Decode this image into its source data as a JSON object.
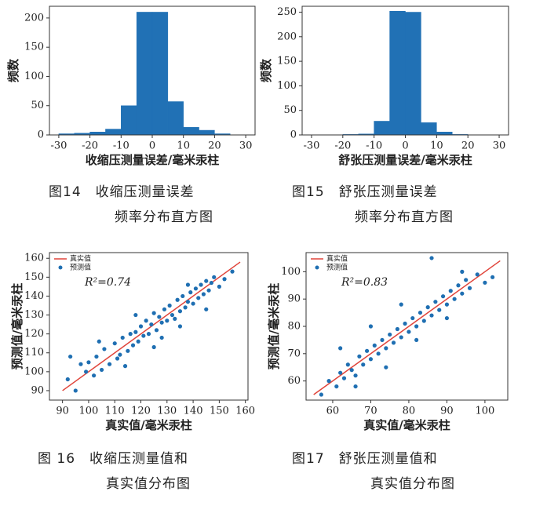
{
  "chart_data": [
    {
      "type": "histogram",
      "xlabel": "收缩压测量误差/毫米汞柱",
      "ylabel": "频数",
      "color": "#2171b5",
      "bins": [
        -30,
        -25,
        -20,
        -15,
        -10,
        -5,
        0,
        5,
        10,
        15,
        20,
        25
      ],
      "values": [
        2,
        3,
        5,
        10,
        50,
        210,
        210,
        57,
        13,
        8,
        2
      ],
      "xlim": [
        -33,
        33
      ],
      "xticks": [
        -30,
        -20,
        -10,
        0,
        10,
        20,
        30
      ],
      "ylim": [
        0,
        220
      ],
      "yticks": [
        0,
        50,
        100,
        150,
        200
      ]
    },
    {
      "type": "histogram",
      "xlabel": "舒张压测量误差/毫米汞柱",
      "ylabel": "频数",
      "color": "#2171b5",
      "bins": [
        -20,
        -15,
        -10,
        -5,
        0,
        5,
        10,
        15,
        20
      ],
      "values": [
        1,
        2,
        28,
        252,
        250,
        25,
        6,
        1
      ],
      "xlim": [
        -33,
        33
      ],
      "xticks": [
        -30,
        -20,
        -10,
        0,
        10,
        20,
        30
      ],
      "ylim": [
        0,
        262
      ],
      "yticks": [
        0,
        50,
        100,
        150,
        200,
        250
      ]
    },
    {
      "type": "scatter",
      "xlabel": "真实值/毫米汞柱",
      "ylabel": "预测值/毫米汞柱",
      "annotation": "R²=0.74",
      "xlim": [
        85,
        161
      ],
      "xticks": [
        90,
        100,
        110,
        120,
        130,
        140,
        150,
        160
      ],
      "ylim": [
        85,
        163
      ],
      "yticks": [
        90,
        100,
        110,
        120,
        130,
        140,
        150,
        160
      ],
      "series": [
        {
          "name": "真实值",
          "type": "line",
          "color": "#e0443a",
          "x": [
            90,
            158
          ],
          "values": [
            90,
            158
          ]
        },
        {
          "name": "预测值",
          "type": "scatter",
          "color": "#1f6fb2",
          "x": [
            92,
            95,
            97,
            99,
            100,
            102,
            103,
            105,
            106,
            108,
            110,
            111,
            112,
            113,
            115,
            116,
            117,
            118,
            119,
            120,
            121,
            122,
            123,
            124,
            125,
            126,
            127,
            128,
            129,
            130,
            131,
            132,
            133,
            134,
            135,
            136,
            137,
            138,
            139,
            140,
            141,
            142,
            143,
            144,
            145,
            146,
            147,
            148,
            150,
            152,
            155,
            93,
            104,
            114,
            125,
            135,
            145,
            118,
            128,
            138
          ],
          "values": [
            96,
            90,
            104,
            100,
            105,
            98,
            108,
            101,
            112,
            104,
            115,
            107,
            109,
            118,
            111,
            120,
            114,
            121,
            116,
            124,
            119,
            127,
            120,
            125,
            131,
            122,
            129,
            126,
            133,
            127,
            135,
            130,
            128,
            138,
            132,
            140,
            134,
            137,
            142,
            136,
            144,
            139,
            146,
            141,
            148,
            143,
            147,
            150,
            145,
            149,
            153,
            108,
            116,
            103,
            113,
            124,
            133,
            130,
            118,
            146
          ]
        }
      ]
    },
    {
      "type": "scatter",
      "xlabel": "真实值/毫米汞柱",
      "ylabel": "预测值/毫米汞柱",
      "annotation": "R²=0.83",
      "xlim": [
        53,
        106
      ],
      "xticks": [
        60,
        70,
        80,
        90,
        100
      ],
      "ylim": [
        53,
        107
      ],
      "yticks": [
        60,
        70,
        80,
        90,
        100
      ],
      "series": [
        {
          "name": "真实值",
          "type": "line",
          "color": "#e0443a",
          "x": [
            55,
            104
          ],
          "values": [
            55,
            104
          ]
        },
        {
          "name": "预测值",
          "type": "scatter",
          "color": "#1f6fb2",
          "x": [
            57,
            59,
            61,
            62,
            63,
            64,
            65,
            66,
            67,
            68,
            69,
            70,
            71,
            72,
            73,
            74,
            75,
            76,
            77,
            78,
            79,
            80,
            81,
            82,
            83,
            84,
            85,
            86,
            87,
            88,
            89,
            90,
            91,
            92,
            93,
            94,
            95,
            96,
            98,
            100,
            102,
            62,
            66,
            70,
            74,
            78,
            82,
            86,
            90,
            94
          ],
          "values": [
            55,
            60,
            58,
            63,
            61,
            66,
            64,
            62,
            69,
            66,
            71,
            68,
            73,
            70,
            75,
            72,
            77,
            74,
            79,
            76,
            81,
            78,
            83,
            80,
            85,
            82,
            87,
            84,
            89,
            86,
            91,
            88,
            93,
            90,
            95,
            92,
            97,
            94,
            99,
            96,
            98,
            72,
            58,
            80,
            65,
            88,
            75,
            105,
            83,
            100
          ]
        }
      ]
    }
  ],
  "captions": [
    [
      "图14　收缩压测量误差",
      "频率分布直方图"
    ],
    [
      "图15　舒张压测量误差",
      "频率分布直方图"
    ],
    [
      "图 16　收缩压测量值和",
      "真实值分布图"
    ],
    [
      "图17　舒张压测量值和",
      "真实值分布图"
    ]
  ]
}
